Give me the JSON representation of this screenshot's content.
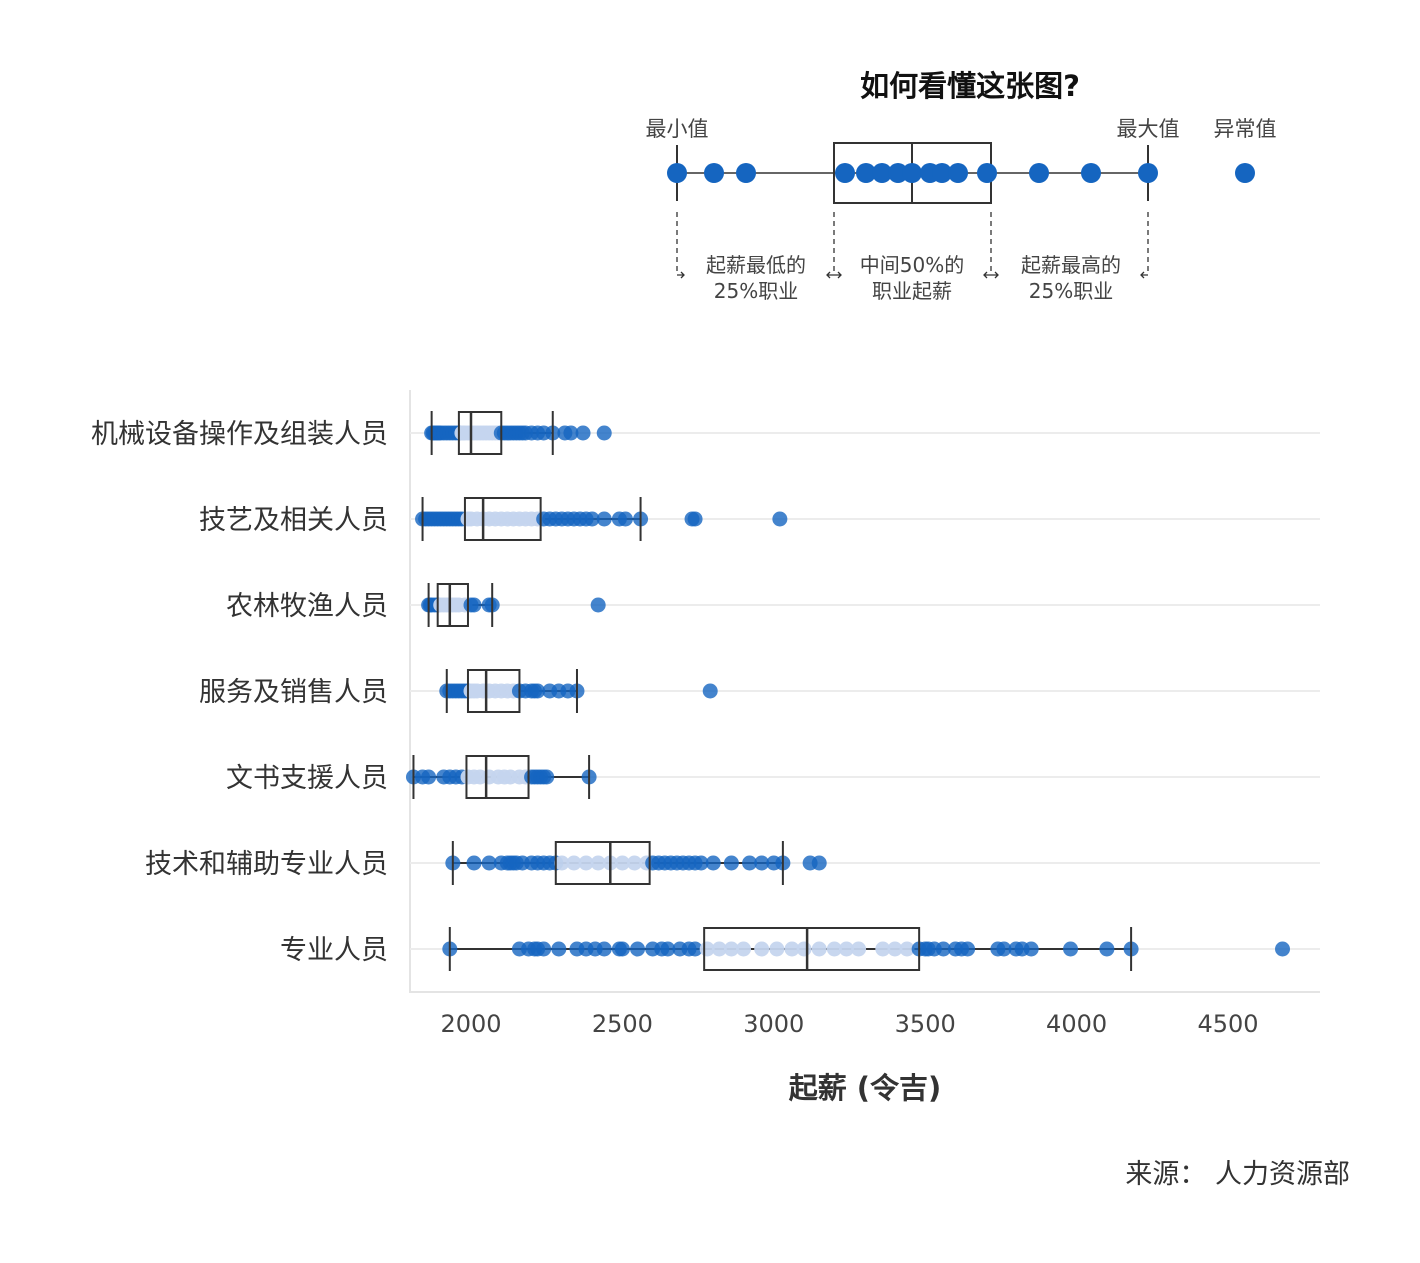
{
  "legend": {
    "title": "如何看懂这张图?",
    "min_label": "最小值",
    "max_label": "最大值",
    "outlier_label": "异常值",
    "low_line1": "起薪最低的",
    "low_line2": "25%职业",
    "mid_line1": "中间50%的",
    "mid_line2": "职业起薪",
    "high_line1": "起薪最高的",
    "high_line2": "25%职业"
  },
  "source": "来源： 人力资源部",
  "colors": {
    "point": "#1565c0",
    "point_inner": "#c5d5ee",
    "box": "#333333",
    "grid": "#ececec"
  },
  "chart_data": {
    "type": "boxplot",
    "xlabel": "起薪 (令吉)",
    "xlim": [
      1800,
      4800
    ],
    "xticks": [
      2000,
      2500,
      3000,
      3500,
      4000,
      4500
    ],
    "categories": [
      "机械设备操作及组装人员",
      "技艺及相关人员",
      "农林牧渔人员",
      "服务及销售人员",
      "文书支援人员",
      "技术和辅助专业人员",
      "专业人员"
    ],
    "series": [
      {
        "category": "机械设备操作及组装人员",
        "min": 1870,
        "q1": 1960,
        "median": 2000,
        "q3": 2100,
        "max": 2270,
        "points": [
          1870,
          1875,
          1880,
          1885,
          1890,
          1895,
          1900,
          1910,
          1920,
          1930,
          1940,
          1950,
          1960,
          1970,
          1975,
          1980,
          1990,
          2000,
          2010,
          2020,
          2030,
          2040,
          2050,
          2060,
          2070,
          2080,
          2090,
          2100,
          2110,
          2120,
          2130,
          2140,
          2150,
          2160,
          2170,
          2180,
          2200,
          2220,
          2240,
          2270,
          2310,
          2330,
          2370,
          2440
        ]
      },
      {
        "category": "技艺及相关人员",
        "min": 1840,
        "q1": 1980,
        "median": 2040,
        "q3": 2230,
        "max": 2560,
        "points": [
          1840,
          1850,
          1860,
          1870,
          1880,
          1890,
          1900,
          1910,
          1920,
          1930,
          1940,
          1950,
          1960,
          1970,
          1990,
          2000,
          2020,
          2040,
          2060,
          2080,
          2100,
          2120,
          2140,
          2160,
          2180,
          2200,
          2220,
          2240,
          2260,
          2280,
          2300,
          2320,
          2340,
          2360,
          2380,
          2400,
          2440,
          2490,
          2510,
          2560,
          2730,
          2740,
          3020
        ]
      },
      {
        "category": "农林牧渔人员",
        "min": 1860,
        "q1": 1890,
        "median": 1930,
        "q3": 1990,
        "max": 2070,
        "points": [
          1860,
          1865,
          1870,
          1880,
          1890,
          1900,
          1910,
          1920,
          1930,
          1940,
          1950,
          1960,
          1980,
          2000,
          2010,
          2060,
          2070,
          2420
        ]
      },
      {
        "category": "服务及销售人员",
        "min": 1920,
        "q1": 1990,
        "median": 2050,
        "q3": 2160,
        "max": 2350,
        "points": [
          1920,
          1930,
          1940,
          1950,
          1960,
          1970,
          1980,
          1990,
          2000,
          2010,
          2020,
          2040,
          2060,
          2080,
          2100,
          2120,
          2140,
          2160,
          2180,
          2200,
          2210,
          2220,
          2260,
          2290,
          2320,
          2350,
          2790
        ]
      },
      {
        "category": "文书支援人员",
        "min": 1810,
        "q1": 1985,
        "median": 2050,
        "q3": 2190,
        "max": 2390,
        "points": [
          1810,
          1840,
          1860,
          1910,
          1930,
          1950,
          1970,
          1990,
          2010,
          2030,
          2060,
          2090,
          2110,
          2130,
          2160,
          2180,
          2200,
          2210,
          2220,
          2230,
          2240,
          2250,
          2390
        ]
      },
      {
        "category": "技术和辅助专业人员",
        "min": 1940,
        "q1": 2280,
        "median": 2460,
        "q3": 2590,
        "max": 3030,
        "points": [
          1940,
          2010,
          2060,
          2100,
          2120,
          2130,
          2140,
          2150,
          2170,
          2200,
          2220,
          2240,
          2260,
          2280,
          2300,
          2340,
          2380,
          2420,
          2460,
          2500,
          2540,
          2580,
          2600,
          2620,
          2640,
          2660,
          2680,
          2700,
          2720,
          2740,
          2760,
          2800,
          2860,
          2920,
          2960,
          3000,
          3030,
          3120,
          3150
        ]
      },
      {
        "category": "专业人员",
        "min": 1930,
        "q1": 2770,
        "median": 3110,
        "q3": 3480,
        "max": 4180,
        "points": [
          1930,
          2160,
          2190,
          2210,
          2220,
          2240,
          2290,
          2350,
          2380,
          2410,
          2440,
          2490,
          2500,
          2550,
          2600,
          2630,
          2650,
          2690,
          2720,
          2740,
          2780,
          2820,
          2860,
          2900,
          2960,
          3010,
          3060,
          3100,
          3150,
          3200,
          3240,
          3280,
          3360,
          3400,
          3440,
          3480,
          3500,
          3510,
          3530,
          3560,
          3600,
          3620,
          3640,
          3740,
          3760,
          3800,
          3820,
          3850,
          3980,
          4100,
          4180,
          4680
        ]
      }
    ]
  }
}
